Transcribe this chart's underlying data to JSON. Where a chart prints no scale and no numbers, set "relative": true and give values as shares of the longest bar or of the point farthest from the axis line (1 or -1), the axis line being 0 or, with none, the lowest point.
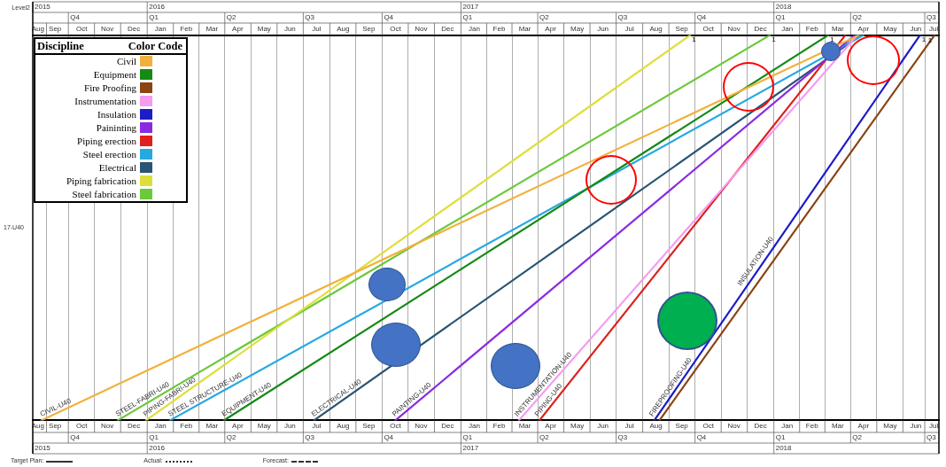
{
  "chart_data": {
    "type": "line",
    "relative": true,
    "ylabel": "17-U40",
    "legend_title": "Discipline",
    "legend": "top left",
    "grid": "x",
    "xlim": [
      "2015-08-20",
      "2018-07-12"
    ],
    "x2lim": [
      "2015-08-20",
      "2018-07-12"
    ],
    "xticks": [
      {
        "value": "2015-08-26",
        "label": "Aug"
      },
      {
        "value": "2015-09-15",
        "label": "Sep"
      },
      {
        "value": "2015-10-16",
        "label": "Oct"
      },
      {
        "value": "2015-11-15",
        "label": "Nov"
      },
      {
        "value": "2015-12-16",
        "label": "Dec"
      },
      {
        "value": "2016-01-16",
        "label": "Jan"
      },
      {
        "value": "2016-02-15",
        "label": "Feb"
      },
      {
        "value": "2016-03-16",
        "label": "Mar"
      },
      {
        "value": "2016-04-15",
        "label": "Apr"
      },
      {
        "value": "2016-05-16",
        "label": "May"
      },
      {
        "value": "2016-06-15",
        "label": "Jun"
      },
      {
        "value": "2016-07-16",
        "label": "Jul"
      },
      {
        "value": "2016-08-16",
        "label": "Aug"
      },
      {
        "value": "2016-09-15",
        "label": "Sep"
      },
      {
        "value": "2016-10-16",
        "label": "Oct"
      },
      {
        "value": "2016-11-15",
        "label": "Nov"
      },
      {
        "value": "2016-12-16",
        "label": "Dec"
      },
      {
        "value": "2017-01-16",
        "label": "Jan"
      },
      {
        "value": "2017-02-14",
        "label": "Feb"
      },
      {
        "value": "2017-03-16",
        "label": "Mar"
      },
      {
        "value": "2017-04-15",
        "label": "Apr"
      },
      {
        "value": "2017-05-16",
        "label": "May"
      },
      {
        "value": "2017-06-15",
        "label": "Jun"
      },
      {
        "value": "2017-07-16",
        "label": "Jul"
      },
      {
        "value": "2017-08-16",
        "label": "Aug"
      },
      {
        "value": "2017-09-15",
        "label": "Sep"
      },
      {
        "value": "2017-10-16",
        "label": "Oct"
      },
      {
        "value": "2017-11-15",
        "label": "Nov"
      },
      {
        "value": "2017-12-16",
        "label": "Dec"
      },
      {
        "value": "2018-01-16",
        "label": "Jan"
      },
      {
        "value": "2018-02-14",
        "label": "Feb"
      },
      {
        "value": "2018-03-16",
        "label": "Mar"
      },
      {
        "value": "2018-04-15",
        "label": "Apr"
      },
      {
        "value": "2018-05-16",
        "label": "May"
      },
      {
        "value": "2018-06-15",
        "label": "Jun"
      },
      {
        "value": "2018-07-06",
        "label": "Jul"
      }
    ],
    "x2ticks": [
      {
        "value": "2015-08-26",
        "label": "Aug"
      },
      {
        "value": "2015-09-15",
        "label": "Sep"
      },
      {
        "value": "2015-10-16",
        "label": "Oct"
      },
      {
        "value": "2015-11-15",
        "label": "Nov"
      },
      {
        "value": "2015-12-16",
        "label": "Dec"
      },
      {
        "value": "2016-01-16",
        "label": "Jan"
      },
      {
        "value": "2016-02-15",
        "label": "Feb"
      },
      {
        "value": "2016-03-16",
        "label": "Mar"
      },
      {
        "value": "2016-04-15",
        "label": "Apr"
      },
      {
        "value": "2016-05-16",
        "label": "May"
      },
      {
        "value": "2016-06-15",
        "label": "Jun"
      },
      {
        "value": "2016-07-16",
        "label": "Jul"
      },
      {
        "value": "2016-08-16",
        "label": "Aug"
      },
      {
        "value": "2016-09-15",
        "label": "Sep"
      },
      {
        "value": "2016-10-16",
        "label": "Oct"
      },
      {
        "value": "2016-11-15",
        "label": "Nov"
      },
      {
        "value": "2016-12-16",
        "label": "Dec"
      },
      {
        "value": "2017-01-16",
        "label": "Jan"
      },
      {
        "value": "2017-02-14",
        "label": "Feb"
      },
      {
        "value": "2017-03-16",
        "label": "Mar"
      },
      {
        "value": "2017-04-15",
        "label": "Apr"
      },
      {
        "value": "2017-05-16",
        "label": "May"
      },
      {
        "value": "2017-06-15",
        "label": "Jun"
      },
      {
        "value": "2017-07-16",
        "label": "Jul"
      },
      {
        "value": "2017-08-16",
        "label": "Aug"
      },
      {
        "value": "2017-09-15",
        "label": "Sep"
      },
      {
        "value": "2017-10-16",
        "label": "Oct"
      },
      {
        "value": "2017-11-15",
        "label": "Nov"
      },
      {
        "value": "2017-12-16",
        "label": "Dec"
      },
      {
        "value": "2018-01-16",
        "label": "Jan"
      },
      {
        "value": "2018-02-14",
        "label": "Feb"
      },
      {
        "value": "2018-03-16",
        "label": "Mar"
      },
      {
        "value": "2018-04-15",
        "label": "Apr"
      },
      {
        "value": "2018-05-16",
        "label": "May"
      },
      {
        "value": "2018-06-15",
        "label": "Jun"
      },
      {
        "value": "2018-07-06",
        "label": "Jul"
      }
    ],
    "series": [
      {
        "name": "Civil",
        "color": "#f2b13c",
        "x": [
          "2015-08-30",
          "2018-04-10"
        ],
        "values": [
          0,
          1
        ]
      },
      {
        "name": "Equipment",
        "color": "#158a15",
        "x": [
          "2016-03-30",
          "2018-03-05"
        ],
        "values": [
          0,
          1
        ]
      },
      {
        "name": "Fire Proofing",
        "color": "#8b4513",
        "x": [
          "2017-08-20",
          "2018-07-07"
        ],
        "values": [
          0,
          1
        ]
      },
      {
        "name": "Instrumentation",
        "color": "#f59bf0",
        "x": [
          "2017-03-09",
          "2018-04-08"
        ],
        "values": [
          0,
          1
        ]
      },
      {
        "name": "Insulation",
        "color": "#1c1cc8",
        "x": [
          "2017-08-14",
          "2018-06-20"
        ],
        "values": [
          0,
          1
        ]
      },
      {
        "name": "Paininting",
        "color": "#8a2be2",
        "x": [
          "2016-10-16",
          "2018-04-05"
        ],
        "values": [
          0,
          1
        ]
      },
      {
        "name": "Piping erection",
        "color": "#e0201c",
        "x": [
          "2017-04-02",
          "2018-03-25"
        ],
        "values": [
          0,
          1
        ]
      },
      {
        "name": "Steel erection",
        "color": "#27a9e0",
        "x": [
          "2016-01-27",
          "2018-04-15"
        ],
        "values": [
          0,
          1
        ]
      },
      {
        "name": "Electrical",
        "color": "#2a5573",
        "x": [
          "2016-07-13",
          "2018-04-12"
        ],
        "values": [
          0,
          1
        ]
      },
      {
        "name": "Piping fabrication",
        "color": "#dede3a",
        "x": [
          "2015-12-30",
          "2017-09-25"
        ],
        "values": [
          0,
          1
        ]
      },
      {
        "name": "Steel fabrication",
        "color": "#6cc93a",
        "x": [
          "2015-11-27",
          "2017-12-27"
        ],
        "values": [
          0,
          1
        ]
      }
    ],
    "annotations": [
      "Level2",
      "Color Code",
      "Target Plan:",
      "Actual:",
      "Forecast:",
      {
        "text": "CIVIL-U40",
        "x": "2015-08-30",
        "y": 0
      },
      {
        "text": "STEEL-FABRI-U40",
        "x": "2015-11-27",
        "y": 0
      },
      {
        "text": "PIPING-FABRI-U40",
        "x": "2015-12-30",
        "y": 0
      },
      {
        "text": "STEEL STRUCTURE-U40",
        "x": "2016-01-27",
        "y": 0
      },
      {
        "text": "EQUIPMENT-U40",
        "x": "2016-03-30",
        "y": 0
      },
      {
        "text": "ELECTRICAL-U40",
        "x": "2016-07-13",
        "y": 0
      },
      {
        "text": "PAINTING-U40",
        "x": "2016-10-16",
        "y": 0
      },
      {
        "text": "INSTRUMENTATION-U40",
        "x": "2017-03-09",
        "y": 0
      },
      {
        "text": "PIPING-U40",
        "x": "2017-04-02",
        "y": 0
      },
      {
        "text": "FIREPROOFING-U40",
        "x": "2017-08-14",
        "y": 0
      },
      {
        "text": "INSULATION-U40",
        "x": "2017-11-25",
        "y": 0.34
      },
      {
        "text": "1",
        "x": "2017-09-25",
        "y": 1
      },
      {
        "text": "1",
        "x": "2017-12-27",
        "y": 1
      },
      {
        "text": "1",
        "x": "2018-03-05",
        "y": 1
      },
      {
        "text": "1",
        "x": "2018-06-20",
        "y": 1
      },
      {
        "text": "1",
        "x": "2018-07-07",
        "y": 1
      },
      "2015",
      "2016",
      "2017",
      "2018",
      "Q4",
      "Q1",
      "Q2",
      "Q3",
      "Q4",
      "Q1",
      "Q2",
      "Q3",
      "Q4",
      "Q1",
      "Q2",
      "Q3",
      "Q4",
      "Q1",
      "Q2",
      "Q3",
      "Q4",
      "Q1",
      "Q2",
      "Q3",
      "Q4",
      "Q1",
      "Q2",
      "Q3",
      "2015",
      "2016",
      "2017",
      "2018"
    ]
  }
}
